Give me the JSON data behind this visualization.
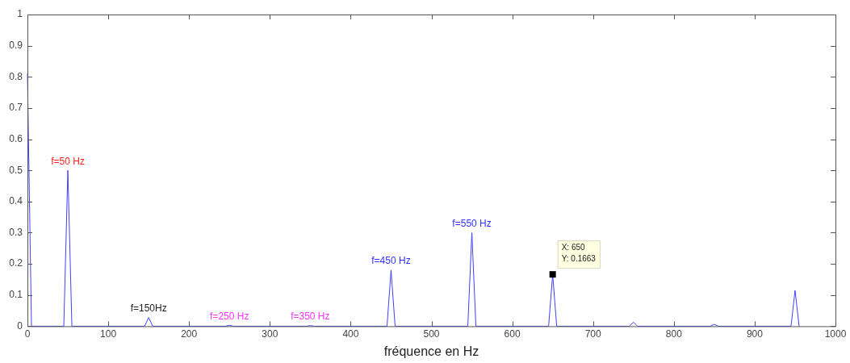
{
  "chart_data": {
    "type": "line",
    "xlabel": "fréquence en Hz",
    "series": [
      {
        "color": "#4040ff",
        "x": [
          0,
          5,
          45,
          50,
          55,
          145,
          150,
          155,
          245,
          250,
          255,
          345,
          350,
          355,
          445,
          450,
          455,
          545,
          550,
          555,
          645,
          650,
          655,
          745,
          750,
          755,
          845,
          850,
          855,
          945,
          950,
          955
        ],
        "values": [
          0.81,
          0,
          0,
          0.5,
          0,
          0,
          0.028,
          0,
          0,
          0.003,
          0,
          0,
          0.002,
          0,
          0,
          0.18,
          0,
          0,
          0.3,
          0,
          0,
          0.1663,
          0,
          0,
          0.013,
          0,
          0,
          0.006,
          0,
          0,
          0.115,
          0
        ]
      }
    ],
    "xlim": [
      0,
      1000
    ],
    "xticks": [
      0,
      100,
      200,
      300,
      400,
      500,
      600,
      700,
      800,
      900,
      1000
    ],
    "ylim": [
      0,
      1
    ],
    "yticks": [
      0,
      0.1,
      0.2,
      0.3,
      0.4,
      0.5,
      0.6,
      0.7,
      0.8,
      0.9,
      1
    ],
    "grid": false,
    "legend": false,
    "marker": "none",
    "line_style": "solid",
    "annotations": [
      {
        "text": "f=50 Hz",
        "x": 50,
        "y": 0.5
      },
      {
        "text": "f=150Hz",
        "x": 150,
        "y": 0.028
      },
      {
        "text": "f=250 Hz",
        "x": 250,
        "y": 0.003
      },
      {
        "text": "f=350 Hz",
        "x": 350,
        "y": 0.002
      },
      {
        "text": "f=450 Hz",
        "x": 450,
        "y": 0.18
      },
      {
        "text": "f=550 Hz",
        "x": 550,
        "y": 0.3
      },
      {
        "text": "X: 650\nY: 0.1663",
        "x": 650,
        "y": 0.1663
      }
    ]
  }
}
